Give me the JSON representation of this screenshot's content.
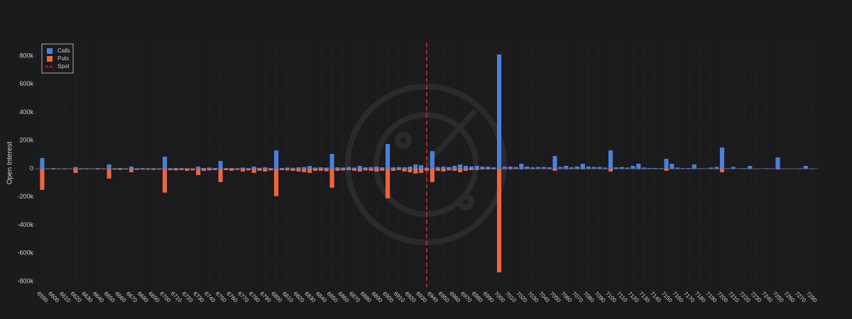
{
  "chart_data": {
    "type": "bar",
    "y_label": "Open Interest",
    "x": [
      6590,
      6595,
      6600,
      6605,
      6610,
      6615,
      6620,
      6625,
      6630,
      6635,
      6640,
      6645,
      6650,
      6655,
      6660,
      6665,
      6670,
      6675,
      6680,
      6685,
      6690,
      6695,
      6700,
      6705,
      6710,
      6715,
      6720,
      6725,
      6730,
      6735,
      6740,
      6745,
      6750,
      6755,
      6760,
      6765,
      6770,
      6775,
      6780,
      6785,
      6790,
      6795,
      6800,
      6805,
      6810,
      6815,
      6820,
      6825,
      6830,
      6835,
      6840,
      6845,
      6850,
      6855,
      6860,
      6865,
      6870,
      6875,
      6880,
      6885,
      6890,
      6895,
      6900,
      6905,
      6910,
      6915,
      6920,
      6925,
      6930,
      6935,
      6940,
      6945,
      6950,
      6955,
      6960,
      6965,
      6970,
      6975,
      6980,
      6985,
      6990,
      6995,
      7000,
      7005,
      7010,
      7015,
      7020,
      7025,
      7030,
      7035,
      7040,
      7045,
      7050,
      7055,
      7060,
      7065,
      7070,
      7075,
      7080,
      7085,
      7090,
      7095,
      7100,
      7105,
      7110,
      7115,
      7120,
      7125,
      7130,
      7135,
      7140,
      7145,
      7150,
      7155,
      7160,
      7165,
      7170,
      7175,
      7180,
      7185,
      7190,
      7195,
      7200,
      7205,
      7210,
      7215,
      7220,
      7225,
      7230,
      7235,
      7240,
      7245,
      7250,
      7255,
      7260,
      7265,
      7270,
      7275,
      7280
    ],
    "series": [
      {
        "name": "Calls",
        "color": "#4a80dc",
        "values": [
          75000,
          2000,
          3000,
          2000,
          2000,
          1000,
          12000,
          2000,
          3000,
          2000,
          3000,
          2000,
          30000,
          3000,
          5000,
          2000,
          15000,
          3000,
          4000,
          3000,
          3000,
          2000,
          85000,
          3000,
          5000,
          4000,
          3000,
          2000,
          15000,
          5000,
          8000,
          5000,
          55000,
          4000,
          5000,
          3000,
          8000,
          4000,
          15000,
          6000,
          10000,
          4000,
          130000,
          5000,
          8000,
          6000,
          10000,
          12000,
          20000,
          8000,
          10000,
          8000,
          105000,
          10000,
          8000,
          12000,
          8000,
          20000,
          10000,
          12000,
          15000,
          10000,
          175000,
          10000,
          12000,
          10000,
          15000,
          30000,
          25000,
          8000,
          125000,
          12000,
          15000,
          12000,
          20000,
          30000,
          20000,
          15000,
          20000,
          15000,
          15000,
          10000,
          810000,
          15000,
          15000,
          12000,
          35000,
          15000,
          10000,
          12000,
          12000,
          10000,
          90000,
          12000,
          20000,
          10000,
          15000,
          35000,
          15000,
          12000,
          12000,
          8000,
          130000,
          10000,
          12000,
          8000,
          20000,
          35000,
          8000,
          5000,
          5000,
          4000,
          70000,
          35000,
          8000,
          4000,
          5000,
          30000,
          3000,
          2000,
          8000,
          12000,
          150000,
          3000,
          12000,
          2000,
          4000,
          20000,
          2000,
          1000,
          3000,
          2000,
          80000,
          2000,
          1000,
          1000,
          3000,
          20000,
          2000
        ]
      },
      {
        "name": "Puts",
        "color": "#f0643c",
        "values": [
          -150000,
          -3000,
          -5000,
          -3000,
          -4000,
          -3000,
          -30000,
          -5000,
          -4000,
          -3000,
          -5000,
          -4000,
          -70000,
          -6000,
          -8000,
          -5000,
          -25000,
          -8000,
          -6000,
          -7000,
          -8000,
          -6000,
          -170000,
          -10000,
          -12000,
          -10000,
          -15000,
          -12000,
          -45000,
          -15000,
          -12000,
          -10000,
          -95000,
          -10000,
          -15000,
          -8000,
          -20000,
          -12000,
          -30000,
          -15000,
          -20000,
          -12000,
          -195000,
          -10000,
          -12000,
          -15000,
          -20000,
          -25000,
          -30000,
          -15000,
          -15000,
          -18000,
          -135000,
          -15000,
          -12000,
          -10000,
          -15000,
          -20000,
          -12000,
          -15000,
          -20000,
          -15000,
          -210000,
          -15000,
          -10000,
          -20000,
          -25000,
          -35000,
          -30000,
          -15000,
          -95000,
          -15000,
          -20000,
          -12000,
          -15000,
          -25000,
          -15000,
          -10000,
          -8000,
          -5000,
          -5000,
          -4000,
          -735000,
          -3000,
          -4000,
          -3000,
          -4000,
          -3000,
          -2000,
          -2000,
          -2000,
          -3000,
          -15000,
          -2000,
          -3000,
          -2000,
          -3000,
          -4000,
          -2000,
          -2000,
          -2000,
          -2000,
          -20000,
          -2000,
          -2000,
          -1000,
          -2000,
          -3000,
          -1000,
          -1000,
          -1000,
          -1000,
          -15000,
          -3000,
          -1000,
          -1000,
          -1000,
          -2000,
          -1000,
          -1000,
          -1000,
          -2000,
          -25000,
          -1000,
          -1000,
          -1000,
          -1000,
          -2000,
          -1000,
          -1000,
          -1000,
          -1000,
          -5000,
          -1000,
          -1000,
          -1000,
          -1000,
          -1000,
          -1000
        ]
      }
    ],
    "spot": {
      "name": "Spot",
      "value": 6935,
      "color": "#d42a2a"
    },
    "xlim": [
      6584,
      7286
    ],
    "ylim": [
      -840000,
      895000
    ],
    "xticks": [
      6590,
      6600,
      6610,
      6620,
      6630,
      6640,
      6650,
      6660,
      6670,
      6680,
      6690,
      6700,
      6710,
      6720,
      6730,
      6740,
      6750,
      6760,
      6770,
      6780,
      6790,
      6800,
      6810,
      6820,
      6830,
      6840,
      6850,
      6860,
      6870,
      6880,
      6890,
      6900,
      6910,
      6920,
      6930,
      6940,
      6950,
      6960,
      6970,
      6980,
      6990,
      7000,
      7010,
      7020,
      7030,
      7040,
      7050,
      7060,
      7070,
      7080,
      7090,
      7100,
      7110,
      7120,
      7130,
      7140,
      7150,
      7160,
      7170,
      7180,
      7190,
      7200,
      7210,
      7220,
      7230,
      7240,
      7250,
      7260,
      7270,
      7280
    ],
    "yticks": [
      {
        "value": -800000,
        "label": "-800k"
      },
      {
        "value": -600000,
        "label": "-600k"
      },
      {
        "value": -400000,
        "label": "-400k"
      },
      {
        "value": -200000,
        "label": "-200k"
      },
      0,
      {
        "value": 200000,
        "label": "200k"
      },
      {
        "value": 400000,
        "label": "400k"
      },
      {
        "value": 600000,
        "label": "600k"
      },
      {
        "value": 800000,
        "label": "800k"
      }
    ],
    "legend": "top-left"
  }
}
